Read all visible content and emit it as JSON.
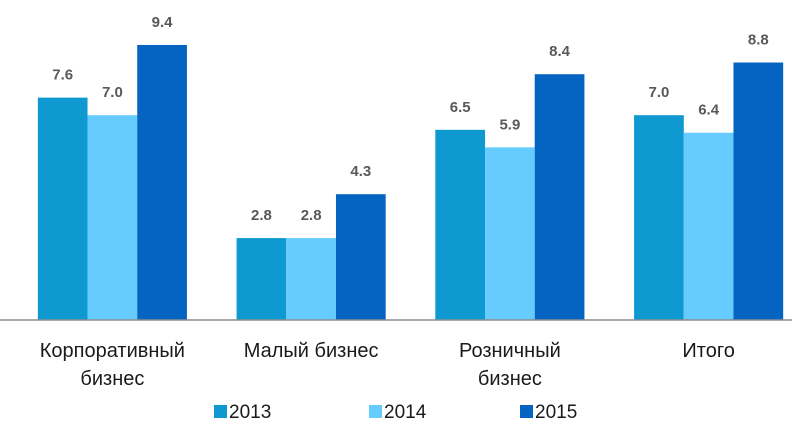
{
  "chart_data": {
    "type": "bar",
    "categories": [
      "Корпоративный бизнес",
      "Малый бизнес",
      "Розничный бизнес",
      "Итого"
    ],
    "series": [
      {
        "name": "2013",
        "color": "#0e9ad0",
        "values": [
          7.6,
          2.8,
          6.5,
          7.0
        ],
        "value_labels": [
          "7.6",
          "2.8",
          "6.5",
          "7.0"
        ]
      },
      {
        "name": "2014",
        "color": "#66ccff",
        "values": [
          7.0,
          2.8,
          5.9,
          6.4
        ],
        "value_labels": [
          "7.0",
          "2.8",
          "5.9",
          "6.4"
        ]
      },
      {
        "name": "2015",
        "color": "#0563c1",
        "values": [
          9.4,
          4.3,
          8.4,
          8.8
        ],
        "value_labels": [
          "9.4",
          "4.3",
          "8.4",
          "8.8"
        ]
      }
    ],
    "ylim": [
      0,
      10
    ]
  }
}
